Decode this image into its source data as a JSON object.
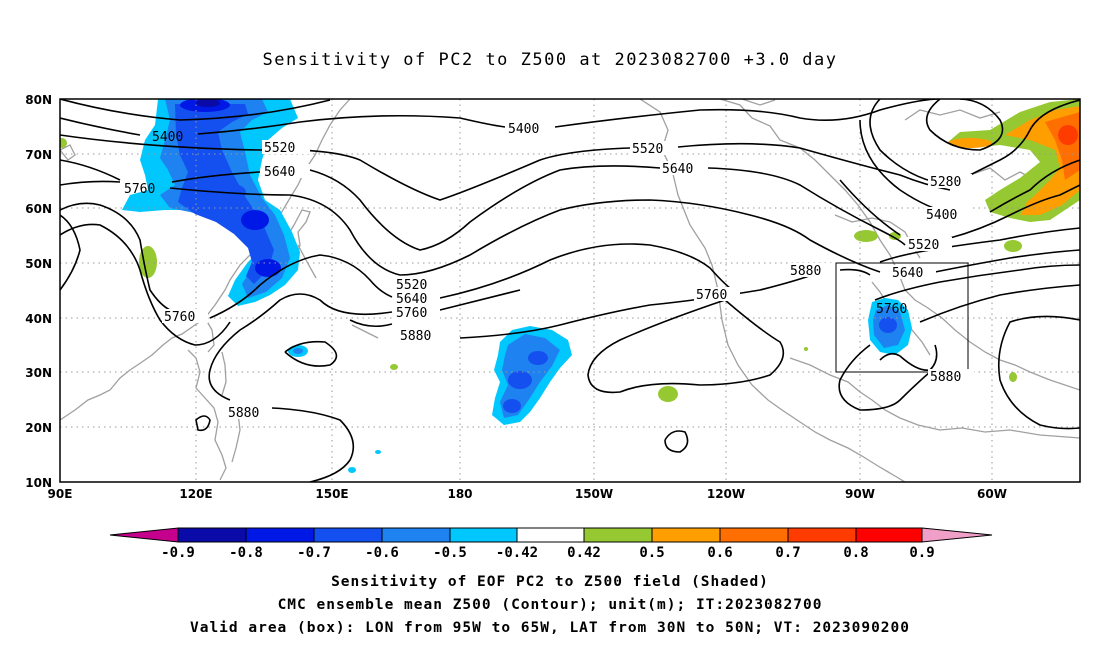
{
  "title": "Sensitivity of PC2 to Z500 at 2023082700 +3.0 day",
  "lat_labels": [
    "80N",
    "70N",
    "60N",
    "50N",
    "40N",
    "30N",
    "20N",
    "10N"
  ],
  "lon_labels": [
    "90E",
    "120E",
    "150E",
    "180",
    "150W",
    "120W",
    "90W",
    "60W"
  ],
  "contour_labels": [
    {
      "text": "5400"
    },
    {
      "text": "5400"
    },
    {
      "text": "5520"
    },
    {
      "text": "5520"
    },
    {
      "text": "5640"
    },
    {
      "text": "5640"
    },
    {
      "text": "5760"
    },
    {
      "text": "5280"
    },
    {
      "text": "5400"
    },
    {
      "text": "5520"
    },
    {
      "text": "5880"
    },
    {
      "text": "5640"
    },
    {
      "text": "5520"
    },
    {
      "text": "5640"
    },
    {
      "text": "5760"
    },
    {
      "text": "5760"
    },
    {
      "text": "5760"
    },
    {
      "text": "5880"
    },
    {
      "text": "5760"
    },
    {
      "text": "5880"
    },
    {
      "text": "5880"
    }
  ],
  "colorbar": {
    "labels": [
      "-0.9",
      "-0.8",
      "-0.7",
      "-0.6",
      "-0.5",
      "-0.42",
      "0.42",
      "0.5",
      "0.6",
      "0.7",
      "0.8",
      "0.9"
    ],
    "colors": {
      "low_end": "#c4008c",
      "bins": [
        "#0a0aa8",
        "#0018e6",
        "#1450f0",
        "#1e82f0",
        "#00c8ff",
        "#ffffff",
        "#96c832",
        "#ff9e00",
        "#ff6e00",
        "#ff3c00",
        "#ff0000"
      ],
      "high_end": "#f0a0c8"
    }
  },
  "valid_box": {
    "lon_from": "95W",
    "lon_to": "65W",
    "lat_from": "30N",
    "lat_to": "50N"
  },
  "captions": [
    "Sensitivity of EOF PC2 to Z500 field (Shaded)",
    "CMC ensemble mean Z500 (Contour); unit(m); IT:2023082700",
    "Valid area (box): LON from 95W to 65W, LAT from 30N to 50N; VT: 2023090200"
  ],
  "colors": {
    "contour": "#000000",
    "coast": "#a0a0a0",
    "grid": "#999999",
    "box": "#000000"
  }
}
